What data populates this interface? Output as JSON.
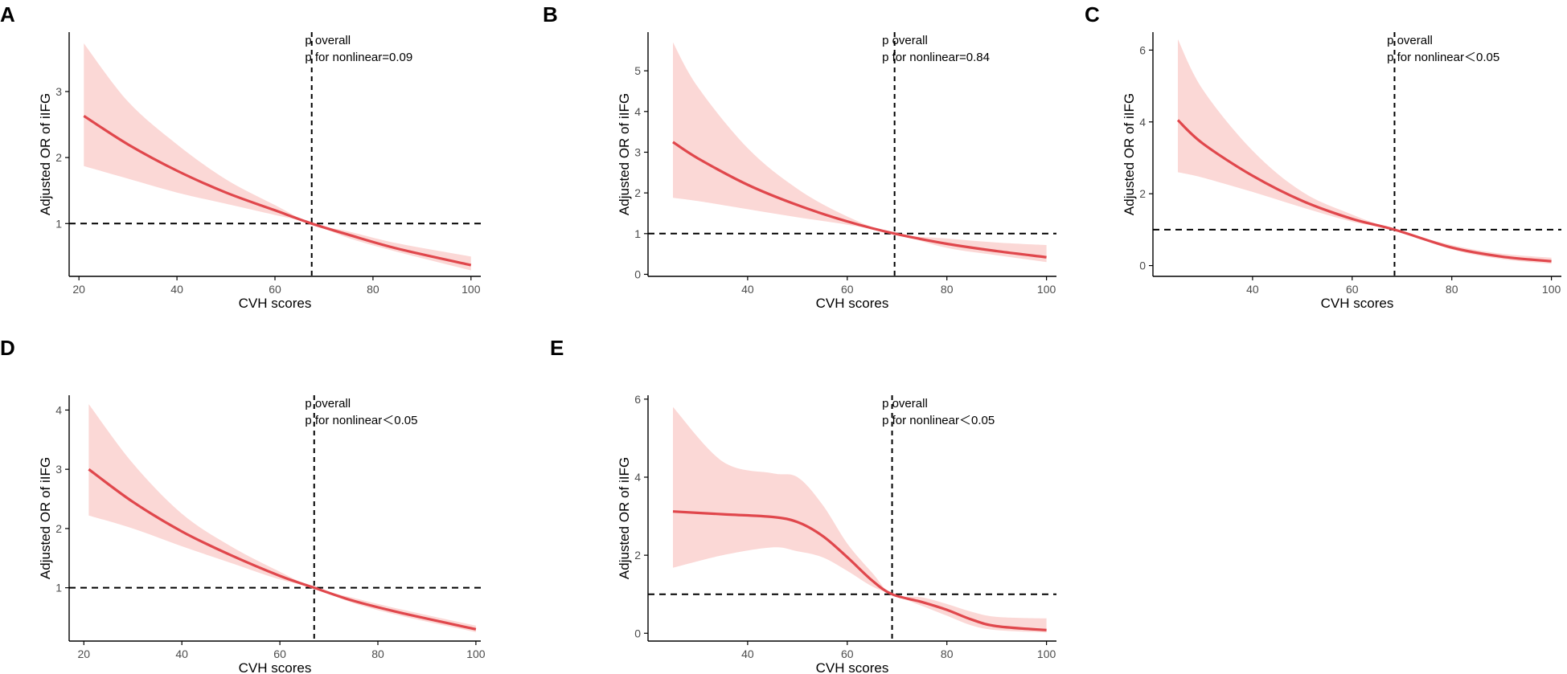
{
  "colors": {
    "curve": "#e0474c",
    "band": "#fbd8d6",
    "axis": "#000000",
    "ref_line": "#000000"
  },
  "chart_data": [
    {
      "panel": "A",
      "type": "line",
      "xlabel": "CVH scores",
      "ylabel": "Adjusted OR of iIFG",
      "xlim": [
        18,
        102
      ],
      "ylim": [
        0.2,
        3.9
      ],
      "xticks": [
        20,
        40,
        60,
        80,
        100
      ],
      "yticks": [
        1,
        2,
        3
      ],
      "ref_x": 67.5,
      "ref_y": 1,
      "annotations": [
        "p overall",
        "p for nonlinear=0.09"
      ],
      "series": [
        {
          "name": "OR",
          "x": [
            21,
            30,
            40,
            50,
            60,
            67.5,
            75,
            85,
            100
          ],
          "y": [
            2.63,
            2.2,
            1.8,
            1.47,
            1.2,
            1.0,
            0.83,
            0.62,
            0.37
          ],
          "lower": [
            1.87,
            1.68,
            1.47,
            1.3,
            1.13,
            1.0,
            0.78,
            0.57,
            0.29
          ],
          "upper": [
            3.73,
            2.85,
            2.2,
            1.67,
            1.28,
            1.0,
            0.88,
            0.7,
            0.5
          ]
        }
      ]
    },
    {
      "panel": "B",
      "type": "line",
      "xlabel": "CVH scores",
      "ylabel": "Adjusted OR of iIFG",
      "xlim": [
        20,
        102
      ],
      "ylim": [
        -0.05,
        5.95
      ],
      "xticks": [
        40,
        60,
        80,
        100
      ],
      "yticks": [
        0,
        1,
        2,
        3,
        4,
        5
      ],
      "ref_x": 69.5,
      "ref_y": 1,
      "annotations": [
        "p overall",
        "p for nonlinear=0.84"
      ],
      "series": [
        {
          "name": "OR",
          "x": [
            25,
            30,
            40,
            50,
            60,
            69.5,
            80,
            90,
            100
          ],
          "y": [
            3.25,
            2.85,
            2.2,
            1.7,
            1.3,
            1.0,
            0.75,
            0.57,
            0.42
          ],
          "lower": [
            1.88,
            1.8,
            1.6,
            1.4,
            1.22,
            1.0,
            0.65,
            0.47,
            0.3
          ],
          "upper": [
            5.7,
            4.6,
            3.1,
            2.1,
            1.42,
            1.0,
            0.88,
            0.78,
            0.72
          ]
        }
      ]
    },
    {
      "panel": "C",
      "type": "line",
      "xlabel": "CVH scores",
      "ylabel": "Adjusted OR of iIFG",
      "xlim": [
        20,
        102
      ],
      "ylim": [
        -0.3,
        6.5
      ],
      "xticks": [
        40,
        60,
        80,
        100
      ],
      "yticks": [
        0,
        2,
        4,
        6
      ],
      "ref_x": 68.5,
      "ref_y": 1,
      "annotations": [
        "p overall",
        "p for nonlinear＜0.05"
      ],
      "series": [
        {
          "name": "OR",
          "x": [
            25,
            30,
            40,
            50,
            60,
            68.5,
            80,
            90,
            100
          ],
          "y": [
            4.05,
            3.4,
            2.5,
            1.8,
            1.3,
            1.0,
            0.5,
            0.25,
            0.12
          ],
          "lower": [
            2.6,
            2.45,
            2.05,
            1.62,
            1.22,
            1.0,
            0.45,
            0.18,
            0.05
          ],
          "upper": [
            6.3,
            4.9,
            3.2,
            2.05,
            1.42,
            1.0,
            0.57,
            0.33,
            0.22
          ]
        }
      ]
    },
    {
      "panel": "D",
      "type": "line",
      "xlabel": "CVH scores",
      "ylabel": "Adjusted OR of iIFG",
      "xlim": [
        17,
        101
      ],
      "ylim": [
        0.1,
        4.25
      ],
      "xticks": [
        20,
        40,
        60,
        80,
        100
      ],
      "yticks": [
        1,
        2,
        3,
        4
      ],
      "ref_x": 67,
      "ref_y": 1,
      "annotations": [
        "p overall",
        "p for nonlinear＜0.05"
      ],
      "series": [
        {
          "name": "OR",
          "x": [
            21,
            30,
            40,
            50,
            60,
            67,
            75,
            85,
            100
          ],
          "y": [
            3.0,
            2.45,
            1.95,
            1.55,
            1.2,
            1.0,
            0.78,
            0.57,
            0.3
          ],
          "lower": [
            2.22,
            2.0,
            1.7,
            1.42,
            1.14,
            1.0,
            0.74,
            0.52,
            0.25
          ],
          "upper": [
            4.1,
            3.1,
            2.25,
            1.7,
            1.27,
            1.0,
            0.83,
            0.63,
            0.36
          ]
        }
      ]
    },
    {
      "panel": "E",
      "type": "line",
      "xlabel": "CVH scores",
      "ylabel": "Adjusted OR of iIFG",
      "xlim": [
        20,
        102
      ],
      "ylim": [
        -0.2,
        6.1
      ],
      "xticks": [
        40,
        60,
        80,
        100
      ],
      "yticks": [
        0,
        2,
        4,
        6
      ],
      "ref_x": 69,
      "ref_y": 1,
      "annotations": [
        "p overall",
        "p for nonlinear＜0.05"
      ],
      "series": [
        {
          "name": "OR",
          "x": [
            25,
            35,
            45,
            50,
            55,
            60,
            65,
            69,
            75,
            80,
            85,
            90,
            100
          ],
          "y": [
            3.12,
            3.05,
            2.98,
            2.85,
            2.5,
            1.95,
            1.35,
            1.0,
            0.8,
            0.6,
            0.35,
            0.18,
            0.08
          ],
          "lower": [
            1.68,
            2.0,
            2.2,
            2.1,
            1.95,
            1.6,
            1.2,
            1.0,
            0.7,
            0.45,
            0.2,
            0.08,
            0.02
          ],
          "upper": [
            5.8,
            4.4,
            4.1,
            4.0,
            3.3,
            2.3,
            1.55,
            1.0,
            0.92,
            0.75,
            0.55,
            0.42,
            0.38
          ]
        }
      ]
    }
  ]
}
